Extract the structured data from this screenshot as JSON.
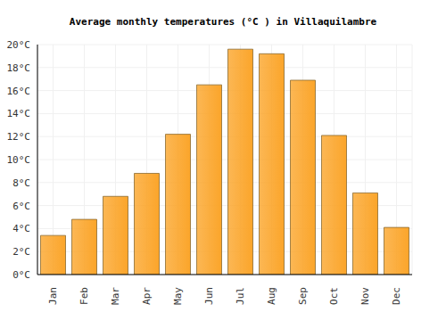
{
  "chart_data": {
    "type": "bar",
    "title": "Average monthly temperatures (°C ) in Villaquilambre",
    "categories": [
      "Jan",
      "Feb",
      "Mar",
      "Apr",
      "May",
      "Jun",
      "Jul",
      "Aug",
      "Sep",
      "Oct",
      "Nov",
      "Dec"
    ],
    "values": [
      3.4,
      4.8,
      6.8,
      8.8,
      12.2,
      16.5,
      19.6,
      19.2,
      16.9,
      12.1,
      7.1,
      4.1
    ],
    "color": "#fba52a",
    "ylim": [
      0,
      20
    ],
    "yticks": [
      {
        "value": 0,
        "label": "0°C"
      },
      {
        "value": 2,
        "label": "2°C"
      },
      {
        "value": 4,
        "label": "4°C"
      },
      {
        "value": 6,
        "label": "6°C"
      },
      {
        "value": 8,
        "label": "8°C"
      },
      {
        "value": 10,
        "label": "10°C"
      },
      {
        "value": 12,
        "label": "12°C"
      },
      {
        "value": 14,
        "label": "14°C"
      },
      {
        "value": 16,
        "label": "16°C"
      },
      {
        "value": 18,
        "label": "18°C"
      },
      {
        "value": 20,
        "label": "20°C"
      }
    ],
    "grid": true
  }
}
